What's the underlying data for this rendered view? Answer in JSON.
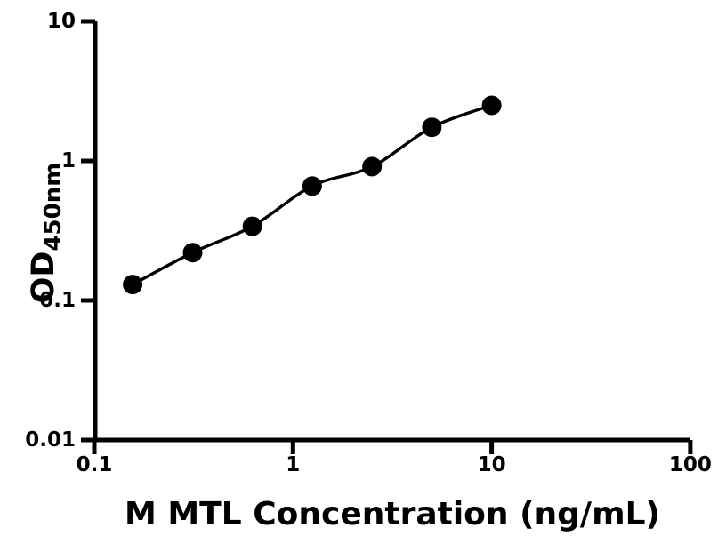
{
  "figure": {
    "background_color": "#ffffff",
    "ink_color": "#000000"
  },
  "chart_data": {
    "type": "scatter",
    "subtype": "elisa-standard-curve",
    "title": "",
    "xlabel": "M MTL Concentration (ng/mL)",
    "ylabel": "OD450nm",
    "ylabel_main": "OD",
    "ylabel_sub": "450nm",
    "x_scale": "log",
    "y_scale": "log",
    "xlim": [
      0.1,
      100
    ],
    "ylim": [
      0.01,
      10
    ],
    "x_ticks": [
      {
        "value": 0.1,
        "label": "0.1"
      },
      {
        "value": 1,
        "label": "1"
      },
      {
        "value": 10,
        "label": "10"
      },
      {
        "value": 100,
        "label": "100"
      }
    ],
    "y_ticks": [
      {
        "value": 0.01,
        "label": "0.01"
      },
      {
        "value": 0.1,
        "label": "0.1"
      },
      {
        "value": 1,
        "label": "1"
      },
      {
        "value": 10,
        "label": "10"
      }
    ],
    "grid": false,
    "legend": "none",
    "series": [
      {
        "name": "standard-curve",
        "marker": "filled-circle",
        "marker_color": "#000000",
        "line_color": "#000000",
        "x": [
          0.156,
          0.3125,
          0.625,
          1.25,
          2.5,
          5,
          10
        ],
        "y": [
          0.13,
          0.22,
          0.34,
          0.66,
          0.91,
          1.74,
          2.5
        ]
      }
    ]
  }
}
